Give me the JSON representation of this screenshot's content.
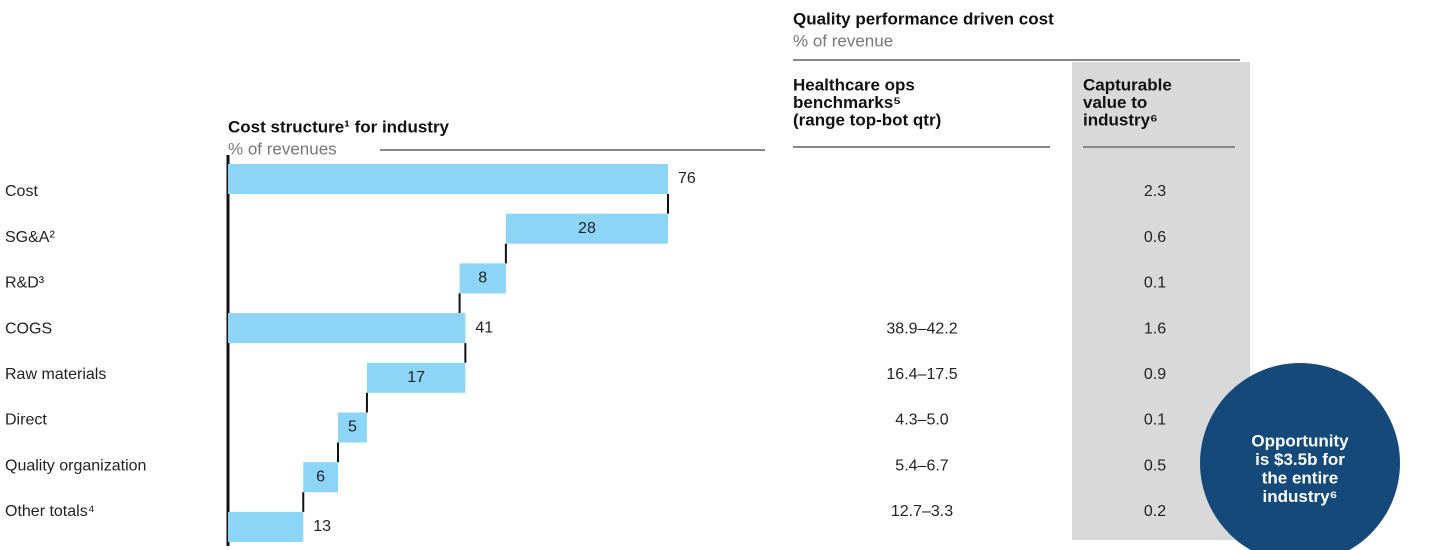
{
  "chart_data": {
    "type": "waterfall",
    "title": "Cost structure¹ for industry",
    "subtitle": "% of revenues",
    "categories": [
      "Cost",
      "SG&A²",
      "R&D³",
      "COGS",
      "Raw materials",
      "Direct",
      "Quality organization",
      "Other totals⁴"
    ],
    "values": [
      76,
      28,
      8,
      41,
      17,
      5,
      6,
      13
    ],
    "measure": [
      "total",
      "relative",
      "relative",
      "total",
      "relative",
      "relative",
      "relative",
      "total"
    ],
    "color": "#8dd5f6",
    "xlim": [
      0,
      76
    ]
  },
  "right_panel": {
    "title": "Quality performance driven cost",
    "subtitle": "% of revenue",
    "benchmark_header": [
      "Healthcare ops",
      "benchmarks⁵",
      "(range top-bot qtr)"
    ],
    "capturable_header": [
      "Capturable",
      "value to",
      "industry⁶"
    ],
    "benchmarks": [
      null,
      null,
      null,
      "38.9–42.2",
      "16.4–17.5",
      "4.3–5.0",
      "5.4–6.7",
      "12.7–3.3"
    ],
    "capturable": [
      2.3,
      0.6,
      0.1,
      1.6,
      0.9,
      0.1,
      0.5,
      0.2
    ]
  },
  "callout": {
    "lines": [
      "Opportunity",
      "is $3.5b for",
      "the entire",
      "industry⁶"
    ]
  }
}
